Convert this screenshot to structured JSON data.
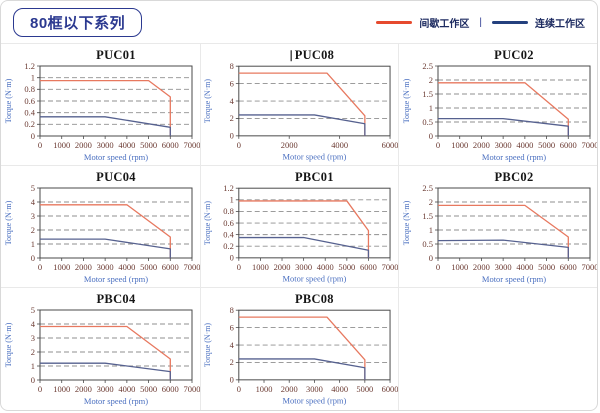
{
  "header": {
    "badge": "80框以下系列"
  },
  "legend": {
    "separator": "|",
    "items": [
      {
        "label": "间歇工作区",
        "color": "#e64a2e"
      },
      {
        "label": "连续工作区",
        "color": "#24407e"
      }
    ]
  },
  "colors": {
    "intermittent_line": "#e7785f",
    "continuous_line": "#56618f",
    "grid": "#8f8f8f",
    "frame": "#4a4a4a",
    "tick_text": "#6b3a32",
    "axis_label_text": "#4a6fc0",
    "header_navy": "#2b3990"
  },
  "chart_data": [
    {
      "type": "line",
      "title": "PUC01",
      "cursor": false,
      "xlabel": "Motor speed (rpm)",
      "ylabel": "Torque (N·m)",
      "xlim": [
        0,
        7000
      ],
      "xticks": [
        0,
        1000,
        2000,
        3000,
        4000,
        5000,
        6000,
        7000
      ],
      "ylim": [
        0,
        1.2
      ],
      "yticks": [
        0,
        0.2,
        0.4,
        0.6,
        0.8,
        1,
        1.2
      ],
      "series": [
        {
          "name": "间歇工作区",
          "key": "intermittent",
          "color": "#e7785f",
          "points": [
            [
              0,
              0.95
            ],
            [
              5000,
              0.95
            ],
            [
              6000,
              0.67
            ],
            [
              6000,
              0
            ]
          ]
        },
        {
          "name": "连续工作区",
          "key": "continuous",
          "color": "#56618f",
          "points": [
            [
              0,
              0.33
            ],
            [
              3000,
              0.33
            ],
            [
              6000,
              0.15
            ],
            [
              6000,
              0
            ]
          ]
        }
      ]
    },
    {
      "type": "line",
      "title": "PUC08",
      "cursor": true,
      "xlabel": "Motor speed (rpm)",
      "ylabel": "Torque (N·m)",
      "xlim": [
        0,
        6000
      ],
      "xticks": [
        0,
        2000,
        4000,
        6000
      ],
      "ylim": [
        0,
        8
      ],
      "yticks": [
        0,
        2,
        4,
        6,
        8
      ],
      "series": [
        {
          "name": "间歇工作区",
          "key": "intermittent",
          "color": "#e7785f",
          "points": [
            [
              0,
              7.2
            ],
            [
              3500,
              7.2
            ],
            [
              5000,
              2.3
            ],
            [
              5000,
              0
            ]
          ]
        },
        {
          "name": "连续工作区",
          "key": "continuous",
          "color": "#56618f",
          "points": [
            [
              0,
              2.4
            ],
            [
              3000,
              2.4
            ],
            [
              5000,
              1.4
            ],
            [
              5000,
              0
            ]
          ]
        }
      ]
    },
    {
      "type": "line",
      "title": "PUC02",
      "cursor": false,
      "xlabel": "Motor speed (rpm)",
      "ylabel": "Torque (N·m)",
      "xlim": [
        0,
        7000
      ],
      "xticks": [
        0,
        1000,
        2000,
        3000,
        4000,
        5000,
        6000,
        7000
      ],
      "ylim": [
        0,
        2.5
      ],
      "yticks": [
        0,
        0.5,
        1,
        1.5,
        2,
        2.5
      ],
      "series": [
        {
          "name": "间歇工作区",
          "key": "intermittent",
          "color": "#e7785f",
          "points": [
            [
              0,
              1.9
            ],
            [
              4000,
              1.9
            ],
            [
              6000,
              0.6
            ],
            [
              6000,
              0
            ]
          ]
        },
        {
          "name": "连续工作区",
          "key": "continuous",
          "color": "#56618f",
          "points": [
            [
              0,
              0.62
            ],
            [
              3000,
              0.62
            ],
            [
              6000,
              0.35
            ],
            [
              6000,
              0
            ]
          ]
        }
      ]
    },
    {
      "type": "line",
      "title": "PUC04",
      "cursor": false,
      "xlabel": "Motor speed (rpm)",
      "ylabel": "Torque (N·m)",
      "xlim": [
        0,
        7000
      ],
      "xticks": [
        0,
        1000,
        2000,
        3000,
        4000,
        5000,
        6000,
        7000
      ],
      "ylim": [
        0,
        5
      ],
      "yticks": [
        0,
        1,
        2,
        3,
        4,
        5
      ],
      "series": [
        {
          "name": "间歇工作区",
          "key": "intermittent",
          "color": "#e7785f",
          "points": [
            [
              0,
              3.8
            ],
            [
              4000,
              3.8
            ],
            [
              6000,
              1.5
            ],
            [
              6000,
              0
            ]
          ]
        },
        {
          "name": "连续工作区",
          "key": "continuous",
          "color": "#56618f",
          "points": [
            [
              0,
              1.35
            ],
            [
              3000,
              1.35
            ],
            [
              6000,
              0.65
            ],
            [
              6000,
              0
            ]
          ]
        }
      ]
    },
    {
      "type": "line",
      "title": "PBC01",
      "cursor": false,
      "xlabel": "Motor speed (rpm)",
      "ylabel": "Torque (N·m)",
      "xlim": [
        0,
        7000
      ],
      "xticks": [
        0,
        1000,
        2000,
        3000,
        4000,
        5000,
        6000,
        7000
      ],
      "ylim": [
        0,
        1.2
      ],
      "yticks": [
        0,
        0.2,
        0.4,
        0.6,
        0.8,
        1,
        1.2
      ],
      "series": [
        {
          "name": "间歇工作区",
          "key": "intermittent",
          "color": "#e7785f",
          "points": [
            [
              0,
              0.98
            ],
            [
              5000,
              0.98
            ],
            [
              6000,
              0.47
            ],
            [
              6000,
              0
            ]
          ]
        },
        {
          "name": "连续工作区",
          "key": "continuous",
          "color": "#56618f",
          "points": [
            [
              0,
              0.35
            ],
            [
              3000,
              0.35
            ],
            [
              6000,
              0.13
            ],
            [
              6000,
              0
            ]
          ]
        }
      ]
    },
    {
      "type": "line",
      "title": "PBC02",
      "cursor": false,
      "xlabel": "Motor speed (rpm)",
      "ylabel": "Torque (N·m)",
      "xlim": [
        0,
        7000
      ],
      "xticks": [
        0,
        1000,
        2000,
        3000,
        4000,
        5000,
        6000,
        7000
      ],
      "ylim": [
        0,
        2.5
      ],
      "yticks": [
        0,
        0.5,
        1,
        1.5,
        2,
        2.5
      ],
      "series": [
        {
          "name": "间歇工作区",
          "key": "intermittent",
          "color": "#e7785f",
          "points": [
            [
              0,
              1.88
            ],
            [
              4000,
              1.88
            ],
            [
              6000,
              0.75
            ],
            [
              6000,
              0
            ]
          ]
        },
        {
          "name": "连续工作区",
          "key": "continuous",
          "color": "#56618f",
          "points": [
            [
              0,
              0.62
            ],
            [
              3000,
              0.64
            ],
            [
              6000,
              0.38
            ],
            [
              6000,
              0
            ]
          ]
        }
      ]
    },
    {
      "type": "line",
      "title": "PBC04",
      "cursor": false,
      "xlabel": "Motor speed (rpm)",
      "ylabel": "Torque (N·m)",
      "xlim": [
        0,
        7000
      ],
      "xticks": [
        0,
        1000,
        2000,
        3000,
        4000,
        5000,
        6000,
        7000
      ],
      "ylim": [
        0,
        5
      ],
      "yticks": [
        0,
        1,
        2,
        3,
        4,
        5
      ],
      "series": [
        {
          "name": "间歇工作区",
          "key": "intermittent",
          "color": "#e7785f",
          "points": [
            [
              0,
              3.82
            ],
            [
              4000,
              3.82
            ],
            [
              6000,
              1.5
            ],
            [
              6000,
              0
            ]
          ]
        },
        {
          "name": "连续工作区",
          "key": "continuous",
          "color": "#56618f",
          "points": [
            [
              0,
              1.2
            ],
            [
              3000,
              1.2
            ],
            [
              6000,
              0.6
            ],
            [
              6000,
              0
            ]
          ]
        }
      ]
    },
    {
      "type": "line",
      "title": "PBC08",
      "cursor": false,
      "xlabel": "Motor speed (rpm)",
      "ylabel": "Torque (N·m)",
      "xlim": [
        0,
        6000
      ],
      "xticks": [
        0,
        1000,
        2000,
        3000,
        4000,
        5000,
        6000
      ],
      "ylim": [
        0,
        8
      ],
      "yticks": [
        0,
        2,
        4,
        6,
        8
      ],
      "series": [
        {
          "name": "间歇工作区",
          "key": "intermittent",
          "color": "#e7785f",
          "points": [
            [
              0,
              7.2
            ],
            [
              3500,
              7.2
            ],
            [
              5000,
              2.3
            ],
            [
              5000,
              0
            ]
          ]
        },
        {
          "name": "连续工作区",
          "key": "continuous",
          "color": "#56618f",
          "points": [
            [
              0,
              2.4
            ],
            [
              3000,
              2.4
            ],
            [
              5000,
              1.4
            ],
            [
              5000,
              0
            ]
          ]
        }
      ]
    }
  ]
}
